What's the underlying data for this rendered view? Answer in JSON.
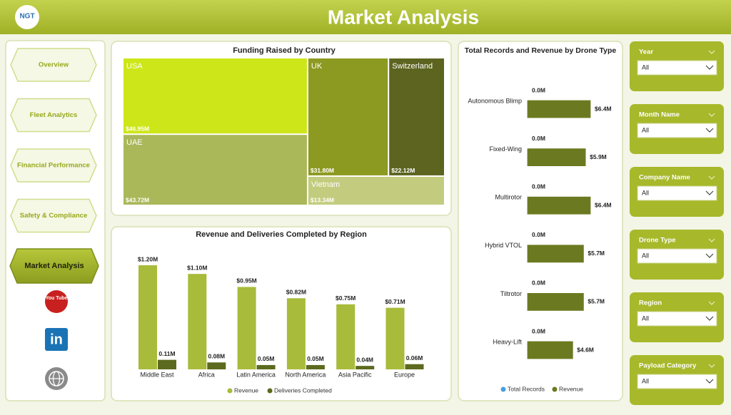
{
  "header": {
    "logo": "NGT",
    "title": "Market Analysis"
  },
  "nav": {
    "items": [
      "Overview",
      "Fleet Analytics",
      "Financial Performance",
      "Safety & Compliance",
      "Market Analysis"
    ],
    "active": 4
  },
  "social": {
    "youtube": "You Tube",
    "linkedin": "in"
  },
  "filters": [
    {
      "label": "Year",
      "value": "All"
    },
    {
      "label": "Month Name",
      "value": "All"
    },
    {
      "label": "Company Name",
      "value": "All"
    },
    {
      "label": "Drone Type",
      "value": "All"
    },
    {
      "label": "Region",
      "value": "All"
    },
    {
      "label": "Payload Category",
      "value": "All"
    }
  ],
  "chart_data": [
    {
      "type": "treemap",
      "title": "Funding Raised by Country",
      "categories": [
        "USA",
        "UAE",
        "UK",
        "Switzerland",
        "Vietnam"
      ],
      "values": [
        46.95,
        43.72,
        31.8,
        22.12,
        13.34
      ],
      "value_labels": [
        "$46.95M",
        "$43.72M",
        "$31.80M",
        "$22.12M",
        "$13.34M"
      ],
      "colors": [
        "#cde619",
        "#aab85a",
        "#8d9a21",
        "#5d6420",
        "#c3cc7e"
      ]
    },
    {
      "type": "bar",
      "title": "Revenue and Deliveries Completed by Region",
      "categories": [
        "Middle East",
        "Africa",
        "Latin America",
        "North America",
        "Asia Pacific",
        "Europe"
      ],
      "series": [
        {
          "name": "Revenue",
          "color": "#a9bb3a",
          "values": [
            1.2,
            1.1,
            0.95,
            0.82,
            0.75,
            0.71
          ],
          "value_labels": [
            "$1.20M",
            "$1.10M",
            "$0.95M",
            "$0.82M",
            "$0.75M",
            "$0.71M"
          ]
        },
        {
          "name": "Deliveries Completed",
          "color": "#5b6a1e",
          "values": [
            0.11,
            0.08,
            0.05,
            0.05,
            0.04,
            0.06
          ],
          "value_labels": [
            "0.11M",
            "0.08M",
            "0.05M",
            "0.05M",
            "0.04M",
            "0.06M"
          ]
        }
      ]
    },
    {
      "type": "barh",
      "title": "Total Records and Revenue by Drone Type",
      "categories": [
        "Autonomous Blimp",
        "Fixed-Wing",
        "Multirotor",
        "Hybrid VTOL",
        "Tiltrotor",
        "Heavy-Lift"
      ],
      "series": [
        {
          "name": "Total Records",
          "color": "#4a9fe0",
          "values": [
            0,
            0,
            0,
            0,
            0,
            0
          ],
          "value_labels": [
            "0.0M",
            "0.0M",
            "0.0M",
            "0.0M",
            "0.0M",
            "0.0M"
          ]
        },
        {
          "name": "Revenue",
          "color": "#6b7a20",
          "values": [
            6.4,
            5.9,
            6.4,
            5.7,
            5.7,
            4.6
          ],
          "value_labels": [
            "$6.4M",
            "$5.9M",
            "$6.4M",
            "$5.7M",
            "$5.7M",
            "$4.6M"
          ]
        }
      ]
    }
  ]
}
